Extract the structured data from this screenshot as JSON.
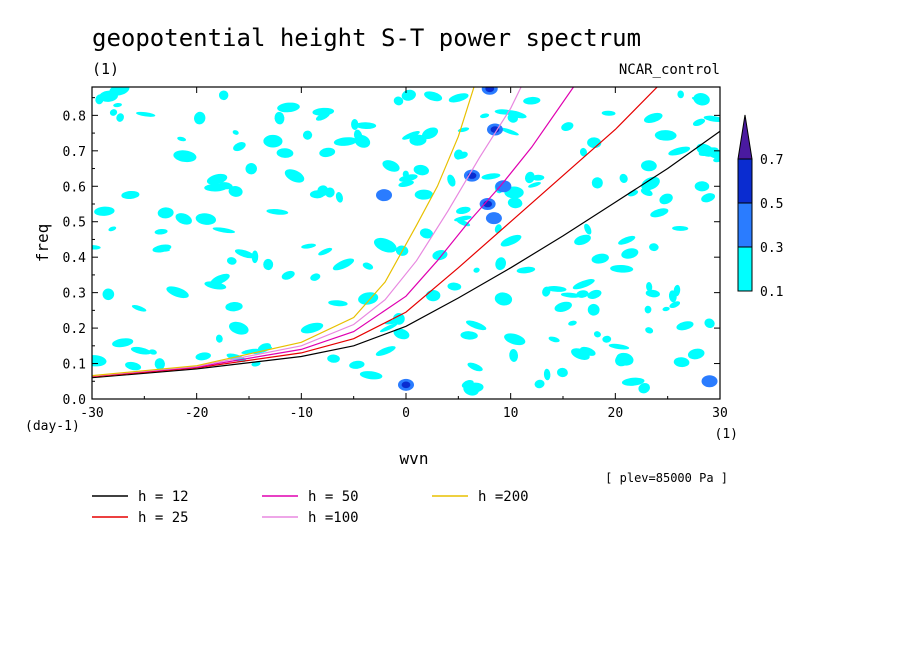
{
  "chart_data": {
    "type": "heatmap",
    "title": "geopotential height S-T power spectrum",
    "subtitle_left": "(1)",
    "subtitle_right": "NCAR_control",
    "xlabel": "wvn",
    "x_unit_label": "(1)",
    "ylabel": "freq",
    "y_unit_label": "(day-1)",
    "xlim": [
      -30,
      30
    ],
    "ylim": [
      0.0,
      0.88
    ],
    "xticks": [
      -30,
      -20,
      -10,
      0,
      10,
      20,
      30
    ],
    "xtick_labels": [
      "-30",
      "-20",
      "-10",
      "0",
      "10",
      "20",
      "30"
    ],
    "yticks": [
      0.0,
      0.1,
      0.2,
      0.3,
      0.4,
      0.5,
      0.6,
      0.7,
      0.8
    ],
    "ytick_labels": [
      "0.0",
      "0.1",
      "0.2",
      "0.3",
      "0.4",
      "0.5",
      "0.6",
      "0.7",
      "0.8"
    ],
    "annotation": "[ plev=85000 Pa ]",
    "colorbar": {
      "levels": [
        "0.1",
        "0.3",
        "0.5",
        "0.7"
      ],
      "colors": [
        "#00ffff",
        "#2a7cff",
        "#0a2cd0",
        "#4a1aa0"
      ]
    },
    "dispersion_curves": [
      {
        "label": "h = 12",
        "color": "#000000",
        "points": [
          [
            -30,
            0.06
          ],
          [
            -20,
            0.085
          ],
          [
            -10,
            0.12
          ],
          [
            -5,
            0.15
          ],
          [
            0,
            0.205
          ],
          [
            5,
            0.285
          ],
          [
            10,
            0.37
          ],
          [
            15,
            0.46
          ],
          [
            20,
            0.555
          ],
          [
            25,
            0.65
          ],
          [
            30,
            0.755
          ]
        ]
      },
      {
        "label": "h = 25",
        "color": "#e60000",
        "points": [
          [
            -30,
            0.063
          ],
          [
            -20,
            0.088
          ],
          [
            -10,
            0.13
          ],
          [
            -5,
            0.17
          ],
          [
            0,
            0.245
          ],
          [
            5,
            0.37
          ],
          [
            10,
            0.5
          ],
          [
            15,
            0.63
          ],
          [
            20,
            0.76
          ],
          [
            24,
            0.88
          ]
        ]
      },
      {
        "label": "h = 50",
        "color": "#e000b0",
        "points": [
          [
            -30,
            0.065
          ],
          [
            -20,
            0.09
          ],
          [
            -10,
            0.14
          ],
          [
            -5,
            0.19
          ],
          [
            0,
            0.29
          ],
          [
            3,
            0.39
          ],
          [
            6,
            0.5
          ],
          [
            9,
            0.6
          ],
          [
            12,
            0.71
          ],
          [
            16,
            0.88
          ]
        ]
      },
      {
        "label": "h =100",
        "color": "#e888e0",
        "points": [
          [
            -30,
            0.065
          ],
          [
            -20,
            0.092
          ],
          [
            -10,
            0.15
          ],
          [
            -5,
            0.21
          ],
          [
            -2,
            0.28
          ],
          [
            1,
            0.39
          ],
          [
            4,
            0.53
          ],
          [
            7,
            0.68
          ],
          [
            10,
            0.82
          ],
          [
            11,
            0.88
          ]
        ]
      },
      {
        "label": "h =200",
        "color": "#e8c000",
        "points": [
          [
            -30,
            0.066
          ],
          [
            -20,
            0.094
          ],
          [
            -10,
            0.16
          ],
          [
            -5,
            0.23
          ],
          [
            -2,
            0.33
          ],
          [
            1,
            0.49
          ],
          [
            3,
            0.6
          ],
          [
            5,
            0.74
          ],
          [
            6.5,
            0.88
          ]
        ]
      }
    ],
    "power_regions": [
      {
        "x": 0,
        "y": 0.04,
        "level": "0.3"
      },
      {
        "x": 0,
        "y": 0.04,
        "level": "0.5"
      },
      {
        "x": 8,
        "y": 0.875,
        "level": "0.3"
      },
      {
        "x": 8,
        "y": 0.875,
        "level": "0.5"
      },
      {
        "x": 8.5,
        "y": 0.76,
        "level": "0.3"
      },
      {
        "x": 8.5,
        "y": 0.76,
        "level": "0.5"
      },
      {
        "x": 6.3,
        "y": 0.63,
        "level": "0.3"
      },
      {
        "x": 6.3,
        "y": 0.63,
        "level": "0.5"
      },
      {
        "x": 7.8,
        "y": 0.55,
        "level": "0.3"
      },
      {
        "x": 7.8,
        "y": 0.55,
        "level": "0.5"
      },
      {
        "x": 8.4,
        "y": 0.51,
        "level": "0.3"
      },
      {
        "x": 9.3,
        "y": 0.6,
        "level": "0.3"
      },
      {
        "x": -2.1,
        "y": 0.575,
        "level": "0.3"
      },
      {
        "x": 29,
        "y": 0.05,
        "level": "0.3"
      }
    ]
  }
}
